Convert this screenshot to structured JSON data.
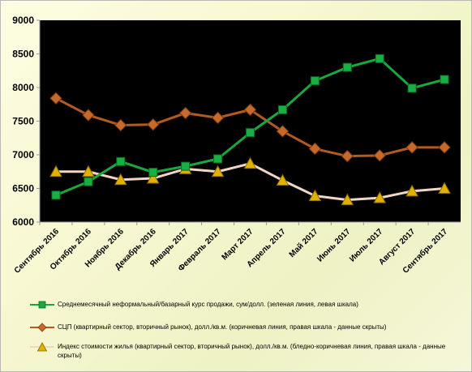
{
  "chart_data": {
    "type": "line",
    "categories": [
      "Сентябрь 2016",
      "Октябрь 2016",
      "Ноябрь 2016",
      "Декабрь 2016",
      "Январь 2017",
      "Февраль 2017",
      "Март 2017",
      "Апрель 2017",
      "Май 2017",
      "Июнь 2017",
      "Июль 2017",
      "Август 2017",
      "Сентябрь 2017"
    ],
    "yticks": [
      "6000",
      "6500",
      "7000",
      "7500",
      "8000",
      "8500",
      "9000"
    ],
    "ylim": [
      6000,
      9000
    ],
    "grid": false,
    "legend_position": "bottom",
    "series": [
      {
        "name": "Среднемесячный неформальный/базарный курс продажи,  сум/долл. (зеленая линия, левая шкала)",
        "marker": "square",
        "color": "#17a83e",
        "values": [
          6400,
          6600,
          6900,
          6740,
          6830,
          6940,
          7330,
          7670,
          8100,
          8300,
          8430,
          7990,
          8120
        ]
      },
      {
        "name": "СЦП (квартирный сектор, вторичный рынок),  долл./кв.м.  (коричневая линия, правая шкала - данные скрыты)",
        "marker": "diamond",
        "color": "#b35a1f",
        "values": [
          7840,
          7590,
          7440,
          7450,
          7620,
          7550,
          7670,
          7350,
          7090,
          6980,
          6990,
          7110,
          7110
        ]
      },
      {
        "name": "Индекс стоимости жилья (квартирный сектор, вторичный рынок),  долл./кв.м.  (бледно-коричневая линия,  правая шкала - данные скрыты)",
        "marker": "triangle",
        "color": "#f2d6c4",
        "values": [
          6750,
          6750,
          6630,
          6650,
          6790,
          6750,
          6870,
          6620,
          6390,
          6330,
          6360,
          6460,
          6500
        ]
      }
    ]
  }
}
